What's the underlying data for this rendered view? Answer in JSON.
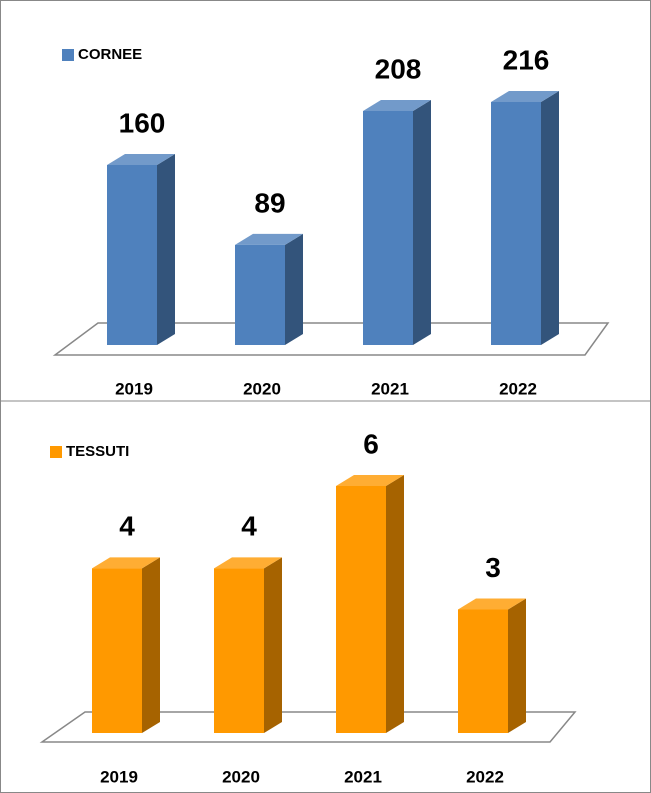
{
  "chart_data": [
    {
      "type": "bar3d",
      "categories": [
        "2019",
        "2020",
        "2021",
        "2022"
      ],
      "series": [
        {
          "name": "CORNEE",
          "color": "#4f81bd",
          "values": [
            160,
            89,
            208,
            216
          ]
        }
      ]
    },
    {
      "type": "bar3d",
      "categories": [
        "2019",
        "2020",
        "2021",
        "2022"
      ],
      "series": [
        {
          "name": "TESSUTI",
          "color": "#ff9900",
          "values": [
            4,
            4,
            6,
            3
          ]
        }
      ]
    }
  ]
}
